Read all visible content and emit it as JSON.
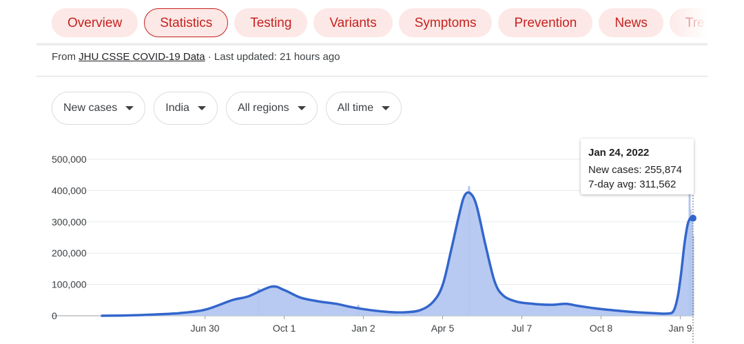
{
  "tabs": [
    {
      "label": "Overview",
      "active": false
    },
    {
      "label": "Statistics",
      "active": true
    },
    {
      "label": "Testing",
      "active": false
    },
    {
      "label": "Variants",
      "active": false
    },
    {
      "label": "Symptoms",
      "active": false
    },
    {
      "label": "Prevention",
      "active": false
    },
    {
      "label": "News",
      "active": false
    },
    {
      "label": "Tre",
      "active": false
    }
  ],
  "source": {
    "prefix": "From ",
    "link": "JHU CSSE COVID-19 Data",
    "suffix": " · Last updated: 21 hours ago"
  },
  "filters": [
    {
      "label": "New cases"
    },
    {
      "label": "India"
    },
    {
      "label": "All regions"
    },
    {
      "label": "All time"
    }
  ],
  "tooltip": {
    "date": "Jan 24, 2022",
    "new_cases": "New cases: 255,874",
    "avg": "7-day avg: 311,562"
  },
  "colors": {
    "accent": "#c5221f",
    "tab_bg": "#fce8e6",
    "line": "#3366cc",
    "bars": "#b4c7f0"
  },
  "chart_data": {
    "type": "area",
    "metric": "New cases",
    "region": "India",
    "ylim": [
      0,
      500000
    ],
    "yticks": [
      0,
      100000,
      200000,
      300000,
      400000,
      500000
    ],
    "ytick_labels": [
      "0",
      "100,000",
      "200,000",
      "300,000",
      "400,000",
      "500,000"
    ],
    "xticks": [
      "2020-06-30",
      "2020-10-01",
      "2021-01-02",
      "2021-04-05",
      "2021-07-07",
      "2021-10-08",
      "2022-01-09"
    ],
    "xtick_labels": [
      "Jun 30",
      "Oct 1",
      "Jan 2",
      "Apr 5",
      "Jul 7",
      "Oct 8",
      "Jan 9"
    ],
    "xlim": [
      "2020-03-01",
      "2022-01-24"
    ],
    "grid": true,
    "series": [
      {
        "x": [
          "2020-03-01",
          "2020-04-01",
          "2020-05-01",
          "2020-06-01",
          "2020-07-01",
          "2020-08-01",
          "2020-08-20",
          "2020-09-16",
          "2020-10-01",
          "2020-10-20",
          "2020-11-10",
          "2020-12-01",
          "2020-12-20",
          "2021-01-10",
          "2021-02-01",
          "2021-02-20",
          "2021-03-10",
          "2021-03-25",
          "2021-04-05",
          "2021-04-15",
          "2021-04-25",
          "2021-05-01",
          "2021-05-08",
          "2021-05-15",
          "2021-05-25",
          "2021-06-05",
          "2021-06-15",
          "2021-07-01",
          "2021-07-20",
          "2021-08-10",
          "2021-08-28",
          "2021-09-10",
          "2021-09-30",
          "2021-10-20",
          "2021-11-15",
          "2021-12-10",
          "2021-12-25",
          "2022-01-01",
          "2022-01-06",
          "2022-01-10",
          "2022-01-14",
          "2022-01-18",
          "2022-01-22",
          "2022-01-24"
        ],
        "values": [
          0,
          1000,
          4000,
          8500,
          20000,
          50000,
          62000,
          93000,
          82000,
          58000,
          46000,
          38000,
          27000,
          18000,
          12000,
          11000,
          18000,
          45000,
          98000,
          210000,
          330000,
          385000,
          390000,
          350000,
          230000,
          110000,
          65000,
          45000,
          38000,
          35000,
          38000,
          32000,
          24000,
          18000,
          12000,
          8000,
          7000,
          15000,
          60000,
          135000,
          230000,
          295000,
          315000,
          311562
        ]
      }
    ],
    "bars": {
      "x": [
        "2020-09-01",
        "2020-12-27",
        "2021-05-06",
        "2022-01-20",
        "2022-01-21",
        "2022-01-24"
      ],
      "values": [
        87000,
        35000,
        414000,
        396000,
        340000,
        255874
      ]
    }
  }
}
